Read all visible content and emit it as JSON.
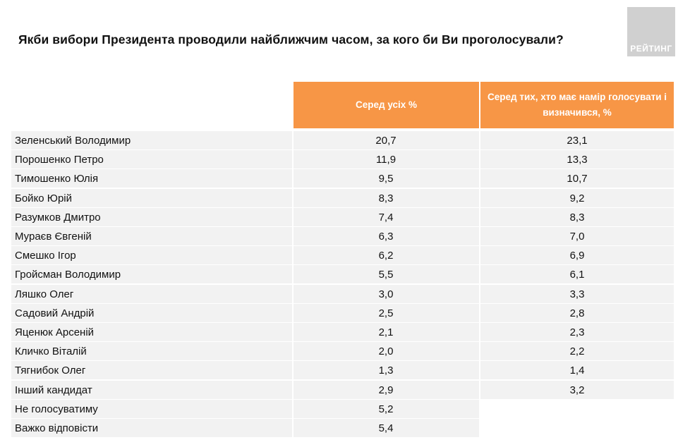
{
  "title": "Якби вибори Президента проводили найближчим часом, за кого би Ви проголосували?",
  "logo_text": "РЕЙТИНГ",
  "colors": {
    "header_bg": "#f79646",
    "row_bg": "#f2f2f2",
    "logo_bg": "#d0d0d0"
  },
  "chart_data": {
    "type": "table",
    "columns": [
      "Серед усіх %",
      "Серед тих, хто має намір голосувати і визначився, %"
    ],
    "header_col2_line1": "Серед тих, хто має намір голосувати і",
    "header_col2_line2": "визначився, %",
    "rows": [
      {
        "name": "Зеленський Володимир",
        "all": "20,7",
        "decided": "23,1"
      },
      {
        "name": "Порошенко Петро",
        "all": "11,9",
        "decided": "13,3"
      },
      {
        "name": "Тимошенко Юлія",
        "all": "9,5",
        "decided": "10,7"
      },
      {
        "name": "Бойко Юрій",
        "all": "8,3",
        "decided": "9,2"
      },
      {
        "name": "Разумков Дмитро",
        "all": "7,4",
        "decided": "8,3"
      },
      {
        "name": "Мураєв Євгеній",
        "all": "6,3",
        "decided": "7,0"
      },
      {
        "name": "Смешко Ігор",
        "all": "6,2",
        "decided": "6,9"
      },
      {
        "name": "Гройсман Володимир",
        "all": "5,5",
        "decided": "6,1"
      },
      {
        "name": "Ляшко Олег",
        "all": "3,0",
        "decided": "3,3"
      },
      {
        "name": "Садовий Андрій",
        "all": "2,5",
        "decided": "2,8"
      },
      {
        "name": "Яценюк Арсеній",
        "all": "2,1",
        "decided": "2,3"
      },
      {
        "name": "Кличко Віталій",
        "all": "2,0",
        "decided": "2,2"
      },
      {
        "name": "Тягнибок Олег",
        "all": "1,3",
        "decided": "1,4"
      },
      {
        "name": "Інший кандидат",
        "all": "2,9",
        "decided": "3,2"
      },
      {
        "name": "Не голосуватиму",
        "all": "5,2",
        "decided": null
      },
      {
        "name": "Важко відповісти",
        "all": "5,4",
        "decided": null
      }
    ]
  }
}
